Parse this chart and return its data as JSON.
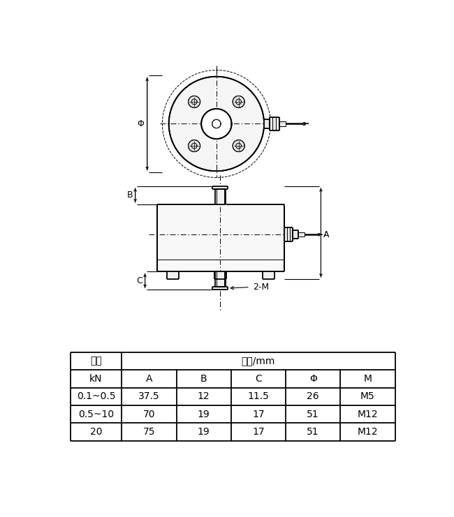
{
  "bg_color": "#ffffff",
  "line_color": "#000000",
  "table_header1": "量程",
  "table_header2": "尺寸/mm",
  "table_col2": "kN",
  "table_cols": [
    "A",
    "B",
    "C",
    "Φ",
    "M"
  ],
  "table_rows": [
    [
      "0.1~0.5",
      "37.5",
      "12",
      "11.5",
      "26",
      "M5"
    ],
    [
      "0.5~10",
      "70",
      "19",
      "17",
      "51",
      "M12"
    ],
    [
      "20",
      "75",
      "19",
      "17",
      "51",
      "M12"
    ]
  ]
}
